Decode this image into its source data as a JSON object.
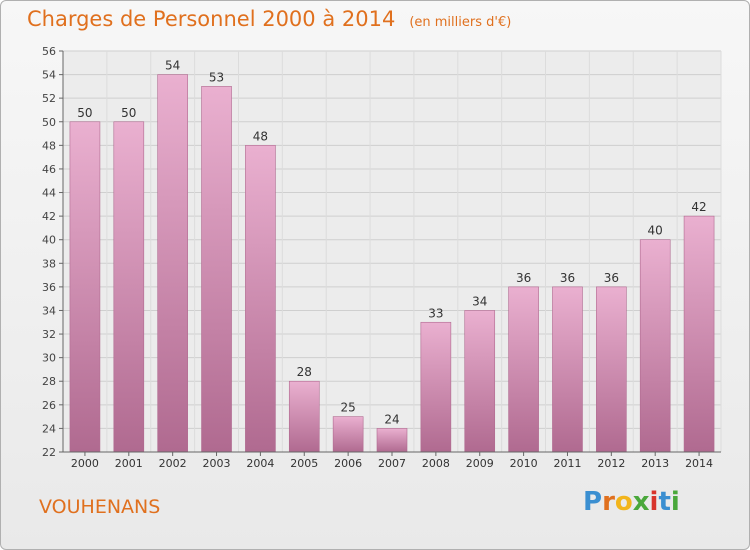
{
  "chart_data": {
    "type": "bar",
    "title": "Charges de Personnel 2000 à 2014",
    "subtitle": "(en milliers d'€)",
    "categories": [
      "2000",
      "2001",
      "2002",
      "2003",
      "2004",
      "2005",
      "2006",
      "2007",
      "2008",
      "2009",
      "2010",
      "2011",
      "2012",
      "2013",
      "2014"
    ],
    "values": [
      50,
      50,
      54,
      53,
      48,
      28,
      25,
      24,
      33,
      34,
      36,
      36,
      36,
      40,
      42
    ],
    "ylim": [
      22,
      56
    ],
    "yticks": [
      22,
      24,
      26,
      28,
      30,
      32,
      34,
      36,
      38,
      40,
      42,
      44,
      46,
      48,
      50,
      52,
      54,
      56
    ],
    "grid": true,
    "bar_color": "#c97aa3"
  },
  "place_name": "VOUHENANS",
  "logo": {
    "letters": [
      "P",
      "r",
      "o",
      "x",
      "i",
      "t",
      "i"
    ],
    "colors": [
      "#3b8fd1",
      "#e0701e",
      "#f2b51c",
      "#4aa83b",
      "#d8342c",
      "#3b8fd1",
      "#4aa83b"
    ]
  }
}
